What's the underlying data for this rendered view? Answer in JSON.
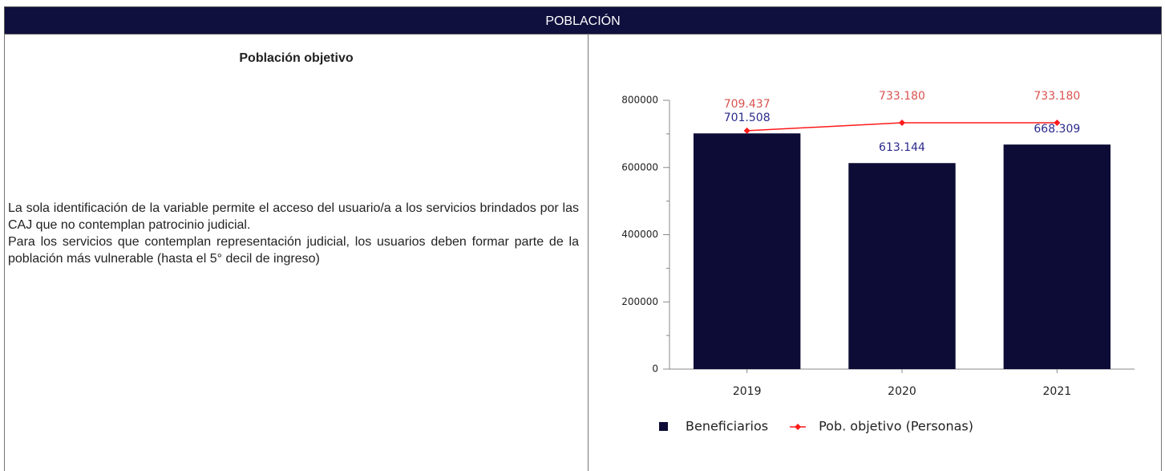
{
  "header": {
    "title": "POBLACIÓN"
  },
  "left": {
    "title": "Población objetivo",
    "paragraphs": [
      "La sola identificación de la variable permite el acceso del usuario/a a los servicios brindados por las CAJ que no contemplan patrocinio judicial.",
      "Para los servicios que contemplan representación judicial, los usuarios deben formar parte de la población más vulnerable (hasta el 5° decil de ingreso)"
    ]
  },
  "chart_data": {
    "type": "bar",
    "categories": [
      "2019",
      "2020",
      "2021"
    ],
    "series": [
      {
        "name": "Beneficiarios",
        "type": "bar",
        "color": "#0c0c36",
        "label_color": "#2a2a8c",
        "values": [
          701508,
          613144,
          668309
        ],
        "value_labels": [
          "701.508",
          "613.144",
          "668.309"
        ]
      },
      {
        "name": "Pob. objetivo (Personas)",
        "type": "line",
        "color": "#ff1a1a",
        "label_color": "#d9534f",
        "values": [
          709437,
          733180,
          733180
        ],
        "value_labels": [
          "709.437",
          "733.180",
          "733.180"
        ]
      }
    ],
    "ylim": [
      0,
      800000
    ],
    "yticks": [
      0,
      200000,
      400000,
      600000,
      800000
    ],
    "minor_yticks": [
      100000,
      300000,
      500000,
      700000
    ],
    "grid": false,
    "legend": "bottom"
  }
}
